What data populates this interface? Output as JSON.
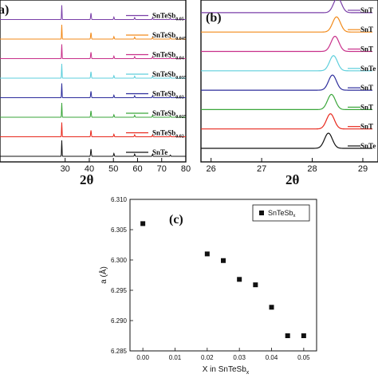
{
  "chart_data": [
    {
      "panel_label": "a)",
      "type": "line",
      "xlabel": "2θ",
      "xlim": [
        3,
        80
      ],
      "x_tick_labels": [
        "30",
        "40",
        "50",
        "60",
        "70",
        "80"
      ],
      "x_ticks": [
        30,
        40,
        50,
        60,
        70,
        80
      ],
      "series": [
        {
          "name": "SnTe",
          "base": "SnTe",
          "sub": "",
          "color": "#111111"
        },
        {
          "name": "SnTeSb0.02",
          "base": "SnTeSb",
          "sub": "0.02",
          "color": "#e8281c"
        },
        {
          "name": "SnTeSb0.025",
          "base": "SnTeSb",
          "sub": "0.025",
          "color": "#3aa63a"
        },
        {
          "name": "SnTeSb0.03",
          "base": "SnTeSb",
          "sub": "0.03",
          "color": "#2d2d9c"
        },
        {
          "name": "SnTeSb0.035",
          "base": "SnTeSb",
          "sub": "0.035",
          "color": "#5ecfdc"
        },
        {
          "name": "SnTeSb0.04",
          "base": "SnTeSb",
          "sub": "0.04",
          "color": "#c8308a"
        },
        {
          "name": "SnTeSb0.045",
          "base": "SnTeSb",
          "sub": "0.045",
          "color": "#f28a1a"
        },
        {
          "name": "SnTeSb0.05",
          "base": "SnTeSb",
          "sub": "0.05",
          "color": "#7a3fa8"
        }
      ],
      "peaks": [
        {
          "x": 28.6,
          "height": 1.0
        },
        {
          "x": 40.7,
          "height": 0.45
        },
        {
          "x": 50.2,
          "height": 0.18
        },
        {
          "x": 58.8,
          "height": 0.14
        },
        {
          "x": 66.2,
          "height": 0.12
        },
        {
          "x": 73.6,
          "height": 0.08
        }
      ]
    },
    {
      "panel_label": "(b)",
      "type": "line",
      "xlabel": "2θ",
      "xlim": [
        25.8,
        29.3
      ],
      "x_tick_labels": [
        "26",
        "27",
        "28",
        "29"
      ],
      "x_ticks": [
        26,
        27,
        28,
        29
      ],
      "series": [
        {
          "name": "SnTe",
          "label": "SnTe",
          "peak": 28.32,
          "color": "#111111"
        },
        {
          "name": "SnTeSb0.02",
          "label": "SnT",
          "peak": 28.36,
          "color": "#e8281c"
        },
        {
          "name": "SnTeSb0.025",
          "label": "SnT",
          "peak": 28.38,
          "color": "#3aa63a"
        },
        {
          "name": "SnTeSb0.03",
          "label": "SnT",
          "peak": 28.4,
          "color": "#2d2d9c"
        },
        {
          "name": "SnTeSb0.035",
          "label": "SnTe",
          "peak": 28.42,
          "color": "#5ecfdc"
        },
        {
          "name": "SnTeSb0.04",
          "label": "SnT",
          "peak": 28.45,
          "color": "#c8308a"
        },
        {
          "name": "SnTeSb0.045",
          "label": "SnT",
          "peak": 28.48,
          "color": "#f28a1a"
        },
        {
          "name": "SnTeSb0.05",
          "label": "SnT",
          "peak": 28.5,
          "color": "#7a3fa8"
        }
      ]
    },
    {
      "panel_label": "(c)",
      "type": "scatter",
      "xlabel": "X in SnTeSb",
      "xlabel_sub": "x",
      "ylabel": "a (Å)",
      "xlim": [
        -0.004,
        0.054
      ],
      "ylim": [
        6.285,
        6.31
      ],
      "x_tick_labels": [
        "0.00",
        "0.01",
        "0.02",
        "0.03",
        "0.04",
        "0.05"
      ],
      "x_ticks": [
        0.0,
        0.01,
        0.02,
        0.03,
        0.04,
        0.05
      ],
      "y_tick_labels": [
        "6.285",
        "6.290",
        "6.295",
        "6.300",
        "6.305",
        "6.310"
      ],
      "y_ticks": [
        6.285,
        6.29,
        6.295,
        6.3,
        6.305,
        6.31
      ],
      "legend": {
        "base": "SnTeSb",
        "sub": "x",
        "position": "top-right"
      },
      "x": [
        0.0,
        0.02,
        0.025,
        0.03,
        0.035,
        0.04,
        0.045,
        0.05
      ],
      "y": [
        6.306,
        6.301,
        6.2999,
        6.2968,
        6.2959,
        6.2922,
        6.2875,
        6.2875
      ]
    }
  ]
}
